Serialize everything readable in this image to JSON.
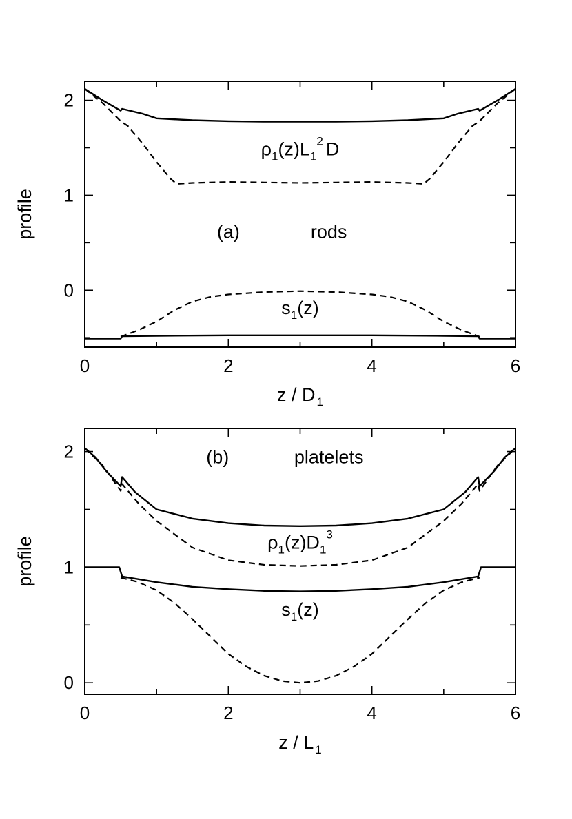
{
  "chart_data": [
    {
      "type": "line",
      "panel_id": "rods",
      "panel_label": "(a)",
      "panel_name": "rods",
      "xlabel": "z / D",
      "xlabel_sub": "1",
      "ylabel": "profile",
      "xlim": [
        0,
        6
      ],
      "ylim": [
        -0.6,
        2.2
      ],
      "xticks": [
        0,
        2,
        4,
        6
      ],
      "yticks": [
        0,
        1,
        2
      ],
      "series": [
        {
          "name": "rho_solid",
          "style": "solid",
          "x": [
            0,
            0.25,
            0.5,
            0.52,
            0.8,
            1.0,
            1.5,
            2.0,
            2.5,
            3.0,
            3.5,
            4.0,
            4.5,
            5.0,
            5.2,
            5.48,
            5.5,
            5.75,
            6.0
          ],
          "y": [
            2.12,
            2.0,
            1.89,
            1.91,
            1.86,
            1.81,
            1.79,
            1.78,
            1.775,
            1.775,
            1.775,
            1.78,
            1.79,
            1.81,
            1.86,
            1.91,
            1.89,
            2.0,
            2.12
          ]
        },
        {
          "name": "rho_dashed",
          "style": "dashed",
          "x": [
            0,
            0.25,
            0.5,
            0.6,
            0.8,
            1.0,
            1.2,
            1.28,
            1.5,
            2.0,
            2.5,
            3.0,
            3.5,
            4.0,
            4.5,
            4.72,
            4.8,
            5.0,
            5.2,
            5.4,
            5.5,
            5.75,
            6.0
          ],
          "y": [
            2.12,
            1.97,
            1.78,
            1.73,
            1.55,
            1.35,
            1.17,
            1.12,
            1.13,
            1.14,
            1.135,
            1.13,
            1.135,
            1.14,
            1.13,
            1.12,
            1.17,
            1.35,
            1.55,
            1.73,
            1.78,
            1.97,
            2.12
          ]
        },
        {
          "name": "s_solid",
          "style": "solid",
          "x": [
            0,
            0.5,
            0.52,
            1.0,
            2.0,
            3.0,
            4.0,
            5.0,
            5.48,
            5.5,
            6.0
          ],
          "y": [
            -0.51,
            -0.51,
            -0.485,
            -0.48,
            -0.475,
            -0.475,
            -0.475,
            -0.48,
            -0.485,
            -0.51,
            -0.51
          ]
        },
        {
          "name": "s_dashed",
          "style": "dashed",
          "x": [
            0.5,
            0.75,
            1.0,
            1.25,
            1.5,
            1.75,
            2.0,
            2.5,
            3.0,
            3.5,
            4.0,
            4.25,
            4.5,
            4.75,
            5.0,
            5.25,
            5.5
          ],
          "y": [
            -0.49,
            -0.42,
            -0.33,
            -0.21,
            -0.12,
            -0.07,
            -0.045,
            -0.02,
            -0.01,
            -0.02,
            -0.045,
            -0.07,
            -0.12,
            -0.21,
            -0.33,
            -0.42,
            -0.49
          ]
        }
      ],
      "annotations": [
        {
          "id": "rho",
          "main": "ρ",
          "sub": "1",
          "mid": "(z)L",
          "sub2": "1",
          "sup": "2",
          "tail": "D",
          "x": 3.0,
          "y": 1.42
        },
        {
          "id": "s",
          "main": "s",
          "sub": "1",
          "tail": "(z)",
          "x": 3.0,
          "y": -0.25
        }
      ],
      "panel_label_pos": {
        "x": 2.0,
        "y": 0.55
      },
      "panel_name_pos": {
        "x": 3.4,
        "y": 0.55
      }
    },
    {
      "type": "line",
      "panel_id": "platelets",
      "panel_label": "(b)",
      "panel_name": "platelets",
      "xlabel": "z / L",
      "xlabel_sub": "1",
      "ylabel": "profile",
      "xlim": [
        0,
        6
      ],
      "ylim": [
        -0.1,
        2.2
      ],
      "xticks": [
        0,
        2,
        4,
        6
      ],
      "yticks": [
        0,
        1,
        2
      ],
      "series": [
        {
          "name": "rho_solid",
          "style": "solid",
          "x": [
            0,
            0.15,
            0.3,
            0.5,
            0.52,
            0.7,
            1.0,
            1.5,
            2.0,
            2.5,
            3.0,
            3.5,
            4.0,
            4.5,
            5.0,
            5.3,
            5.48,
            5.5,
            5.7,
            5.85,
            6.0
          ],
          "y": [
            2.03,
            1.95,
            1.83,
            1.7,
            1.78,
            1.65,
            1.5,
            1.42,
            1.38,
            1.36,
            1.355,
            1.36,
            1.38,
            1.42,
            1.5,
            1.65,
            1.78,
            1.7,
            1.83,
            1.95,
            2.03
          ]
        },
        {
          "name": "rho_dashed",
          "style": "dashed",
          "x": [
            0,
            0.25,
            0.5,
            0.52,
            0.75,
            1.0,
            1.5,
            2.0,
            2.5,
            3.0,
            3.5,
            4.0,
            4.5,
            5.0,
            5.25,
            5.48,
            5.5,
            5.75,
            6.0
          ],
          "y": [
            2.03,
            1.88,
            1.66,
            1.72,
            1.55,
            1.4,
            1.17,
            1.06,
            1.02,
            1.01,
            1.02,
            1.06,
            1.17,
            1.4,
            1.55,
            1.72,
            1.66,
            1.88,
            2.03
          ]
        },
        {
          "name": "s_solid",
          "style": "solid",
          "x": [
            0,
            0.48,
            0.52,
            1.0,
            1.5,
            2.0,
            2.5,
            3.0,
            3.5,
            4.0,
            4.5,
            5.0,
            5.48,
            5.52,
            6.0
          ],
          "y": [
            1.0,
            1.0,
            0.92,
            0.87,
            0.83,
            0.81,
            0.795,
            0.79,
            0.795,
            0.81,
            0.83,
            0.87,
            0.92,
            1.0,
            1.0
          ]
        },
        {
          "name": "s_dashed",
          "style": "dashed",
          "x": [
            0.5,
            0.75,
            1.0,
            1.25,
            1.5,
            1.75,
            2.0,
            2.25,
            2.5,
            2.75,
            3.0,
            3.25,
            3.5,
            3.75,
            4.0,
            4.25,
            4.5,
            4.75,
            5.0,
            5.25,
            5.5
          ],
          "y": [
            0.91,
            0.87,
            0.8,
            0.69,
            0.55,
            0.4,
            0.25,
            0.14,
            0.06,
            0.015,
            0.0,
            0.015,
            0.06,
            0.14,
            0.25,
            0.4,
            0.55,
            0.69,
            0.8,
            0.87,
            0.91
          ]
        }
      ],
      "annotations": [
        {
          "id": "rho",
          "main": "ρ",
          "sub": "1",
          "mid": "(z)D",
          "sub2": "1",
          "sup": "3",
          "tail": "",
          "x": 3.0,
          "y": 1.16
        },
        {
          "id": "s",
          "main": "s",
          "sub": "1",
          "tail": "(z)",
          "x": 3.0,
          "y": 0.58
        }
      ],
      "panel_label_pos": {
        "x": 1.85,
        "y": 1.9
      },
      "panel_name_pos": {
        "x": 3.4,
        "y": 1.9
      }
    }
  ]
}
